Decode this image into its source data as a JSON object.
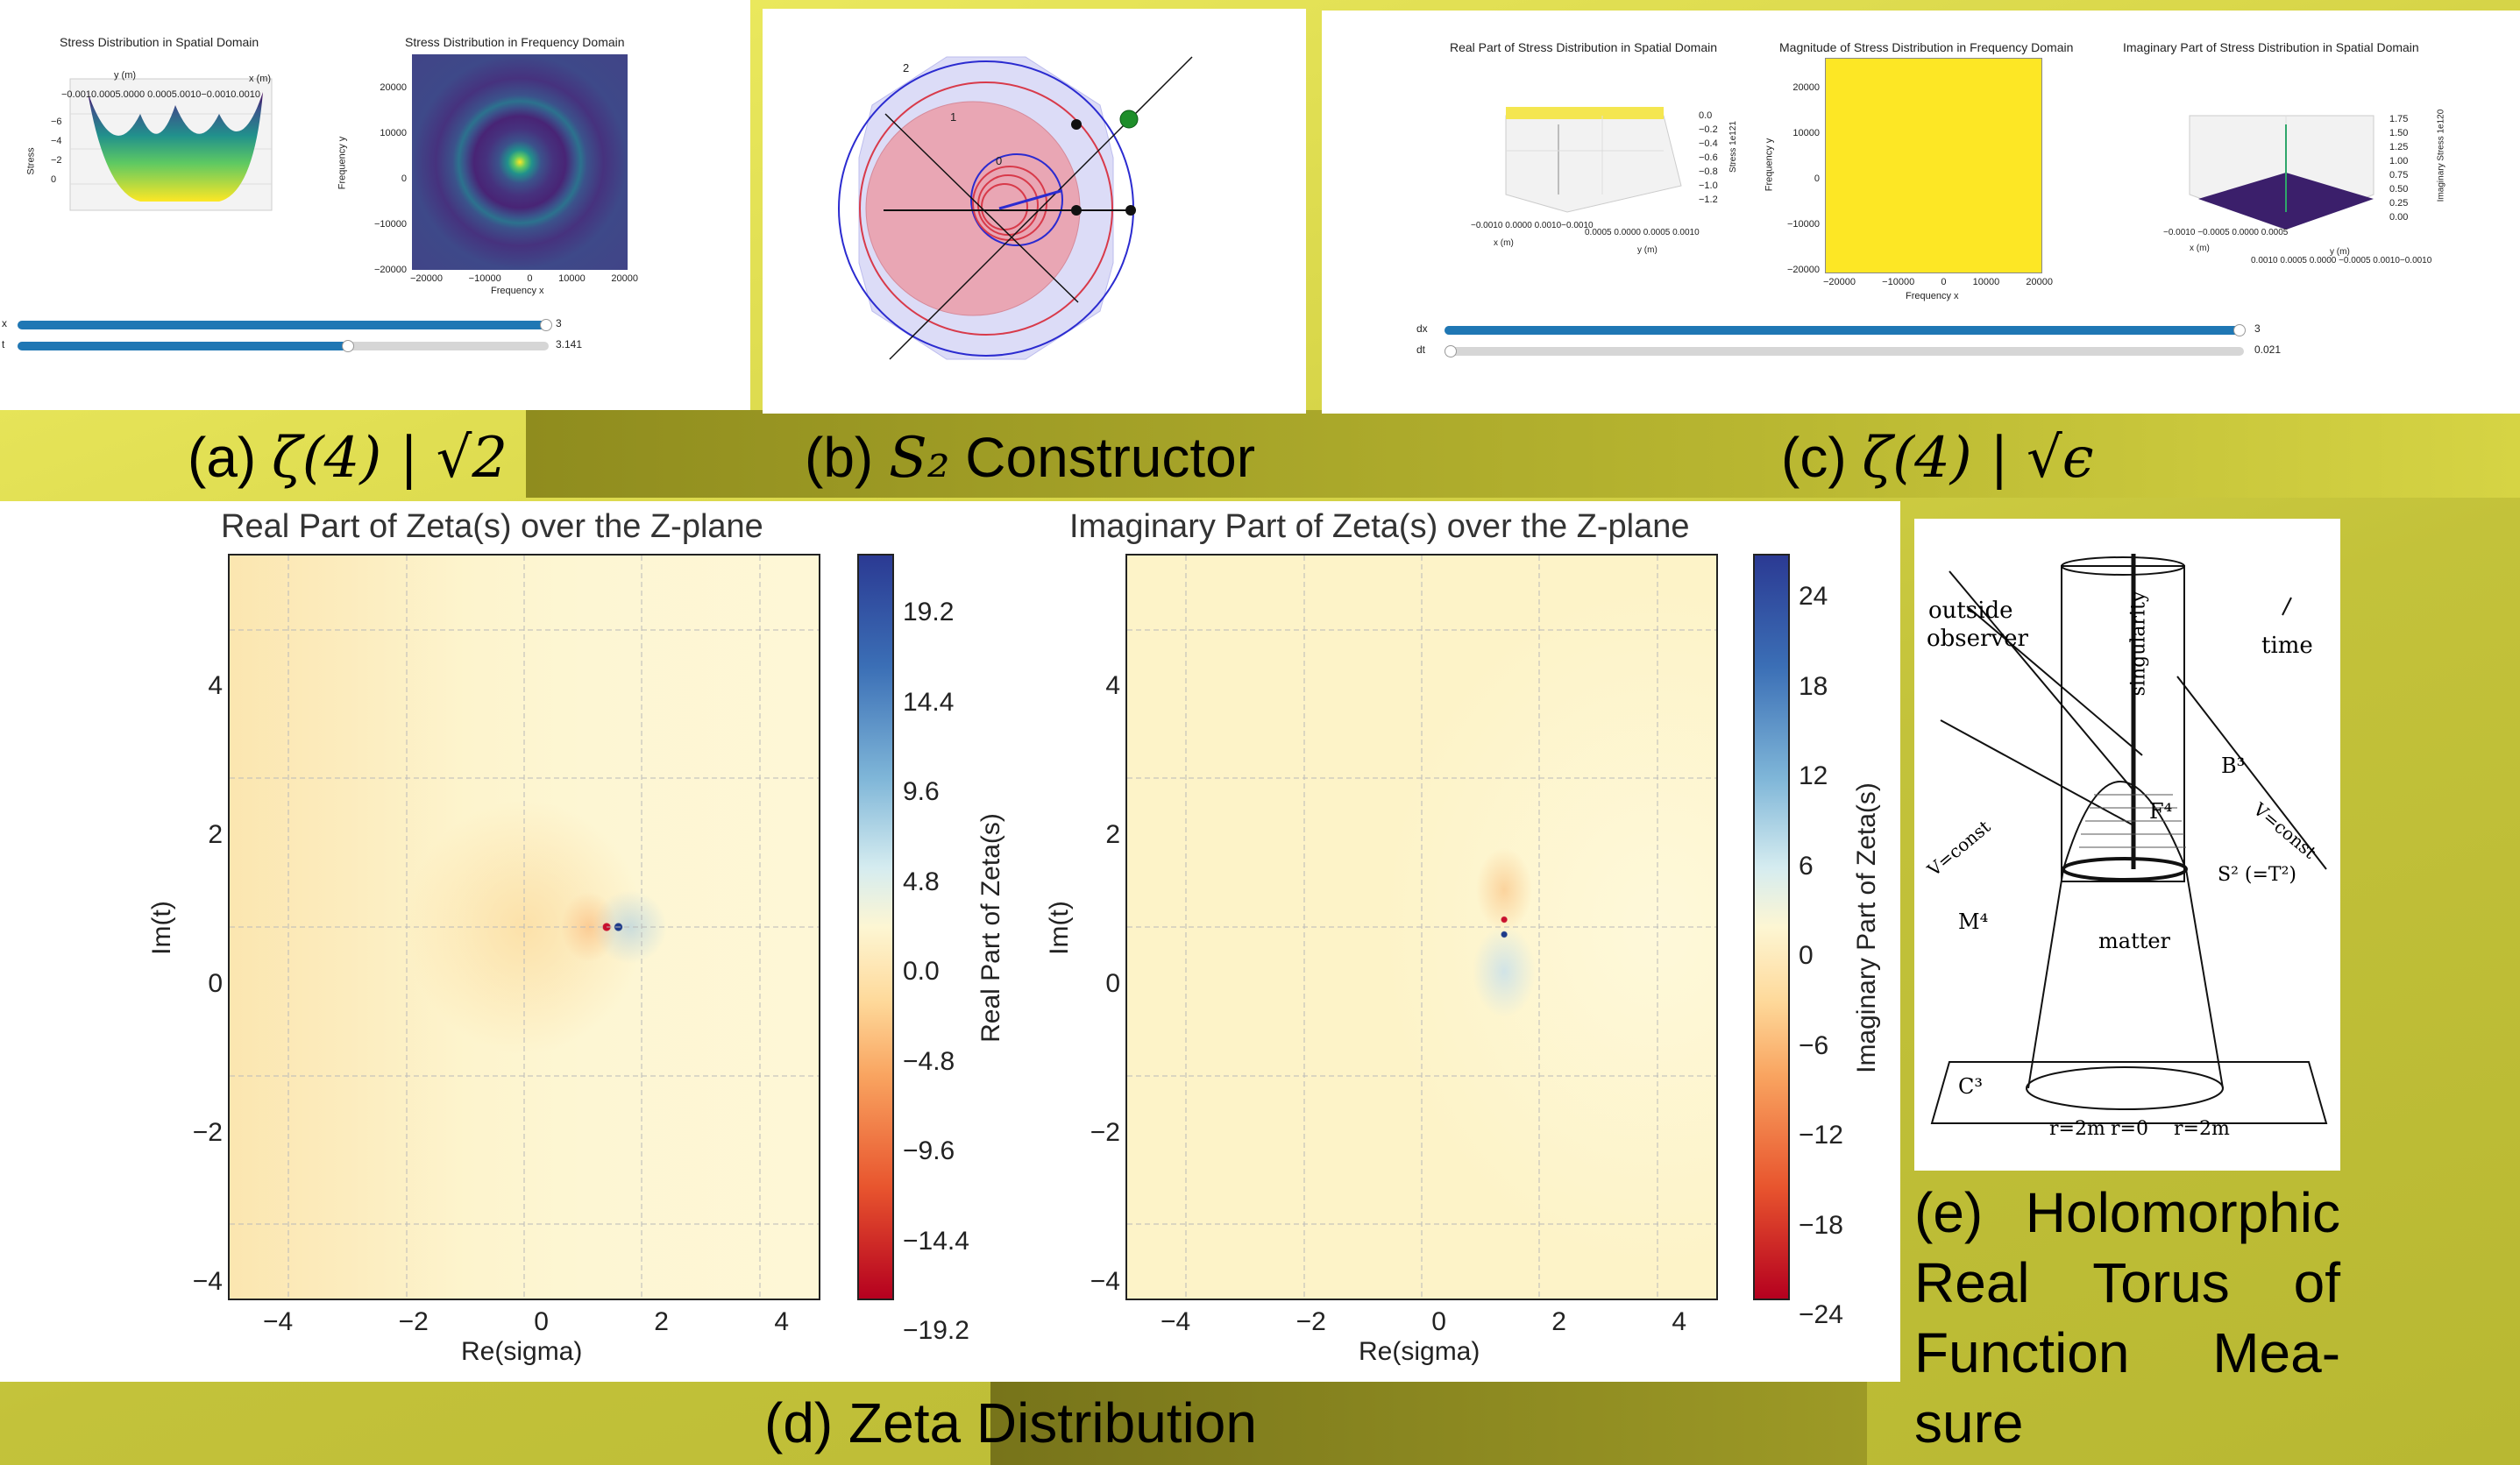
{
  "captions": {
    "a": {
      "prefix": "(a) ",
      "math": "ζ(4) | √2"
    },
    "b": {
      "prefix": "(b) ",
      "math": "S₂",
      "suffix": " Constructor"
    },
    "c": {
      "prefix": "(c) ",
      "math": "ζ(4) | √ϵ"
    },
    "d": "(d) Zeta Distribution",
    "e": "(e) Holomorphic Real Torus of Function Mea-sure"
  },
  "panel_a": {
    "left_title": "Stress Distribution in Spatial Domain",
    "right_title": "Stress Distribution in Frequency Domain",
    "left_axis_y": "y (m)",
    "left_axis_x": "x (m)",
    "left_zlabel": "Stress",
    "left_top_ticks": "−0.0010.0005.0000 0.0005.0010−0.0010.0010",
    "left_z_ticks": [
      "−6",
      "−4",
      "−2",
      "0"
    ],
    "right_ylabel": "Frequency y",
    "right_xlabel": "Frequency x",
    "right_y_ticks": [
      "20000",
      "10000",
      "0",
      "−10000",
      "−20000"
    ],
    "right_x_ticks": [
      "−20000",
      "−10000",
      "0",
      "10000",
      "20000"
    ],
    "slider1": {
      "label": "x",
      "value": "3",
      "fraction": 1.0
    },
    "slider2": {
      "label": "t",
      "value": "3.141",
      "fraction": 0.62
    }
  },
  "panel_b": {
    "labels": [
      "2",
      "1",
      "0"
    ]
  },
  "panel_c": {
    "title1": "Real Part of Stress Distribution in Spatial Domain",
    "title2": "Magnitude of Stress Distribution in Frequency Domain",
    "title3": "Imaginary Part of Stress Distribution in Spatial Domain",
    "c1_zticks": [
      "0.0",
      "−0.2",
      "−0.4",
      "−0.6",
      "−0.8",
      "−1.0",
      "−1.2"
    ],
    "c1_zlabel": "Stress  1e121",
    "c1_xlabel": "x (m)",
    "c1_ylabel": "y (m)",
    "c1_xticks": "−0.0010 0.0000 0.0010−0.0010",
    "c1_yticks": "0.0005 0.0000 0.0005 0.0010",
    "c2_ylabel": "Frequency y",
    "c2_xlabel": "Frequency x",
    "c2_yticks": [
      "20000",
      "10000",
      "0",
      "−10000",
      "−20000"
    ],
    "c2_xticks": [
      "−20000",
      "−10000",
      "0",
      "10000",
      "20000"
    ],
    "c3_zticks": [
      "1.75",
      "1.50",
      "1.25",
      "1.00",
      "0.75",
      "0.50",
      "0.25",
      "0.00"
    ],
    "c3_zlabel": "Imaginary Stress 1e120",
    "c3_xlabel": "x (m)",
    "c3_ylabel": "y (m)",
    "c3_xticks": "−0.0010 −0.0005 0.0000 0.0005",
    "c3_yticks": "0.0010 0.0005 0.0000 −0.0005 0.0010−0.0010",
    "slider1": {
      "label": "dx",
      "value": "3",
      "fraction": 1.0
    },
    "slider2": {
      "label": "dt",
      "value": "0.021",
      "fraction": 0.0
    }
  },
  "panel_d": {
    "left": {
      "title": "Real Part of Zeta(s) over the Z-plane",
      "xlabel": "Re(sigma)",
      "ylabel": "Im(t)",
      "xticks": [
        "−4",
        "−2",
        "0",
        "2",
        "4"
      ],
      "yticks": [
        "4",
        "2",
        "0",
        "−2",
        "−4"
      ],
      "cb_label": "Real Part of Zeta(s)",
      "cb_ticks": [
        "19.2",
        "14.4",
        "9.6",
        "4.8",
        "0.0",
        "−4.8",
        "−9.6",
        "−14.4",
        "−19.2"
      ]
    },
    "right": {
      "title": "Imaginary Part of Zeta(s) over the Z-plane",
      "xlabel": "Re(sigma)",
      "ylabel": "Im(t)",
      "xticks": [
        "−4",
        "−2",
        "0",
        "2",
        "4"
      ],
      "yticks": [
        "4",
        "2",
        "0",
        "−2",
        "−4"
      ],
      "cb_label": "Imaginary Part of Zeta(s)",
      "cb_ticks": [
        "24",
        "18",
        "12",
        "6",
        "0",
        "−6",
        "−12",
        "−18",
        "−24"
      ]
    }
  },
  "panel_e": {
    "labels": {
      "outside": "outside",
      "observer": "observer",
      "singularity": "singularity",
      "time": "time",
      "b3": "B³",
      "f4": "F⁴",
      "s2": "S² (=T²)",
      "vconst_left": "V=const",
      "vconst_right": "V=const",
      "m4": "M⁴",
      "matter": "matter",
      "c3": "C³",
      "r2m_left": "r=2m",
      "r0": "r=0",
      "r2m_right": "r=2m"
    }
  }
}
